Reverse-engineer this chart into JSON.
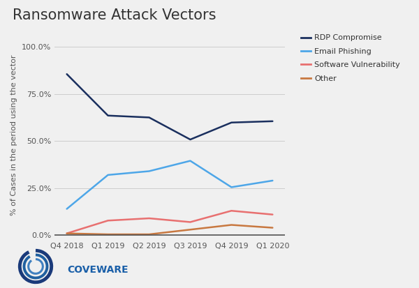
{
  "title": "Ransomware Attack Vectors",
  "ylabel": "% of Cases in the period using the vector",
  "x_labels": [
    "Q4 2018",
    "Q1 2019",
    "Q2 2019",
    "Q3 2019",
    "Q4 2019",
    "Q1 2020"
  ],
  "series": {
    "RDP Compromise": {
      "values": [
        0.855,
        0.635,
        0.625,
        0.508,
        0.598,
        0.605
      ],
      "color": "#1a2f5e",
      "linewidth": 1.8
    },
    "Email Phishing": {
      "values": [
        0.14,
        0.32,
        0.34,
        0.395,
        0.255,
        0.29
      ],
      "color": "#4da6e8",
      "linewidth": 1.8
    },
    "Software Vulnerability": {
      "values": [
        0.01,
        0.078,
        0.09,
        0.07,
        0.13,
        0.11
      ],
      "color": "#e87070",
      "linewidth": 1.8
    },
    "Other": {
      "values": [
        0.01,
        0.005,
        0.005,
        0.03,
        0.055,
        0.04
      ],
      "color": "#c87840",
      "linewidth": 1.8
    }
  },
  "ylim": [
    -0.02,
    1.08
  ],
  "yticks": [
    0.0,
    0.25,
    0.5,
    0.75,
    1.0
  ],
  "ytick_labels": [
    "0.0%",
    "25.0%",
    "50.0%",
    "75.0%",
    "100.0%"
  ],
  "background_color": "#f0f0f0",
  "plot_background": "#f0f0f0",
  "grid_color": "#cccccc",
  "title_fontsize": 15,
  "axis_label_fontsize": 8,
  "tick_fontsize": 8,
  "legend_fontsize": 8,
  "coveware_color": "#1a5fa8",
  "coveware_text": "COVEWARE"
}
